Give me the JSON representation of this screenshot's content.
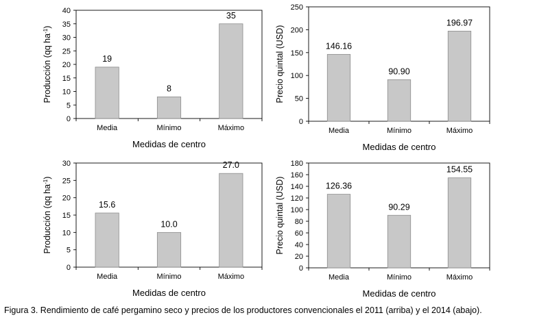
{
  "caption": "Figura 3. Rendimiento de café pergamino seco y precios de los productores convencionales el 2011 (arriba) y el 2014 (abajo).",
  "bar_color": "#c8c8c8",
  "chart_data": [
    {
      "type": "bar",
      "categories": [
        "Media",
        "Mínimo",
        "Máximo"
      ],
      "values": [
        19,
        8,
        35
      ],
      "value_labels": [
        "19",
        "8",
        "35"
      ],
      "xlabel": "Medidas de centro",
      "ylabel": "Producción (qq ha",
      "ylabel_sup": "-1",
      "ylabel_end": ")",
      "ylim": [
        0,
        40
      ],
      "yticks": [
        0,
        5,
        10,
        15,
        20,
        25,
        30,
        35,
        40
      ],
      "grid": false
    },
    {
      "type": "bar",
      "categories": [
        "Media",
        "Mínimo",
        "Máximo"
      ],
      "values": [
        146.16,
        90.9,
        196.97
      ],
      "value_labels": [
        "146.16",
        "90.90",
        "196.97"
      ],
      "xlabel": "Medidas de centro",
      "ylabel": "Precio quintal (USD)",
      "ylim": [
        0,
        250
      ],
      "yticks": [
        0,
        50,
        100,
        150,
        200,
        250
      ],
      "grid": false
    },
    {
      "type": "bar",
      "categories": [
        "Media",
        "Mínimo",
        "Máximo"
      ],
      "values": [
        15.6,
        10.0,
        27.0
      ],
      "value_labels": [
        "15.6",
        "10.0",
        "27.0"
      ],
      "xlabel": "Medidas de centro",
      "ylabel": "Producción (qq ha",
      "ylabel_sup": "-1",
      "ylabel_end": ")",
      "ylim": [
        0,
        30
      ],
      "yticks": [
        0,
        5,
        10,
        15,
        20,
        25,
        30
      ],
      "grid": false
    },
    {
      "type": "bar",
      "categories": [
        "Media",
        "Mínimo",
        "Máximo"
      ],
      "values": [
        126.36,
        90.29,
        154.55
      ],
      "value_labels": [
        "126.36",
        "90.29",
        "154.55"
      ],
      "xlabel": "Medidas de centro",
      "ylabel": "Precio quintal (USD)",
      "ylim": [
        0,
        180
      ],
      "yticks": [
        0,
        20,
        40,
        60,
        80,
        100,
        120,
        140,
        160,
        180
      ],
      "grid": false
    }
  ]
}
